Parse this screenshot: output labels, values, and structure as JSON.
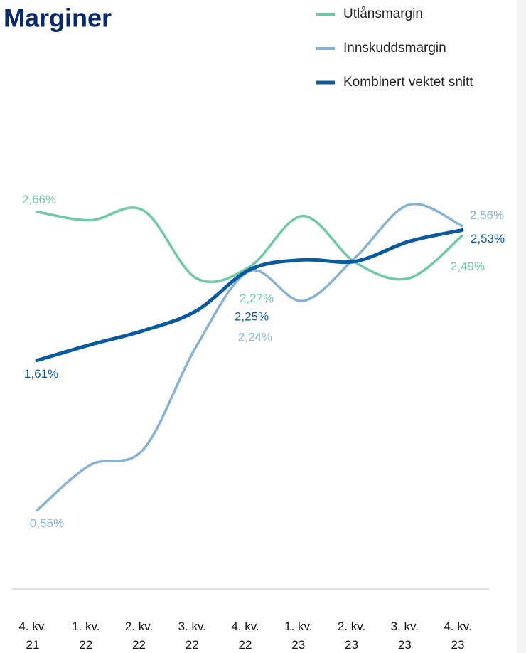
{
  "chart_data": {
    "type": "line",
    "title": "Marginer",
    "categories": [
      "4. kv. 21",
      "1. kv. 22",
      "2. kv. 22",
      "3. kv. 22",
      "4. kv. 22",
      "1. kv. 23",
      "2. kv. 23",
      "3. kv. 23",
      "4. kv. 23"
    ],
    "series": [
      {
        "name": "Utlånsmargin",
        "color": "#6fcaa6",
        "values": [
          2.66,
          2.6,
          2.67,
          2.19,
          2.27,
          2.63,
          2.3,
          2.19,
          2.49
        ],
        "value_labels": [
          "2,66%",
          null,
          null,
          null,
          "2,27%",
          null,
          null,
          null,
          "2,49%"
        ]
      },
      {
        "name": "Innskuddsmargin",
        "color": "#86b3d3",
        "values": [
          0.55,
          0.87,
          0.98,
          1.71,
          2.24,
          2.03,
          2.34,
          2.71,
          2.56
        ],
        "value_labels": [
          "0,55%",
          null,
          null,
          null,
          "2,24%",
          null,
          null,
          null,
          "2,56%"
        ]
      },
      {
        "name": "Kombinert vektet snitt",
        "color": "#0a5aa0",
        "values": [
          1.61,
          1.72,
          1.82,
          1.96,
          2.25,
          2.32,
          2.31,
          2.45,
          2.53
        ],
        "value_labels": [
          "1,61%",
          null,
          null,
          null,
          "2,25%",
          null,
          null,
          null,
          "2,53%"
        ]
      }
    ]
  }
}
